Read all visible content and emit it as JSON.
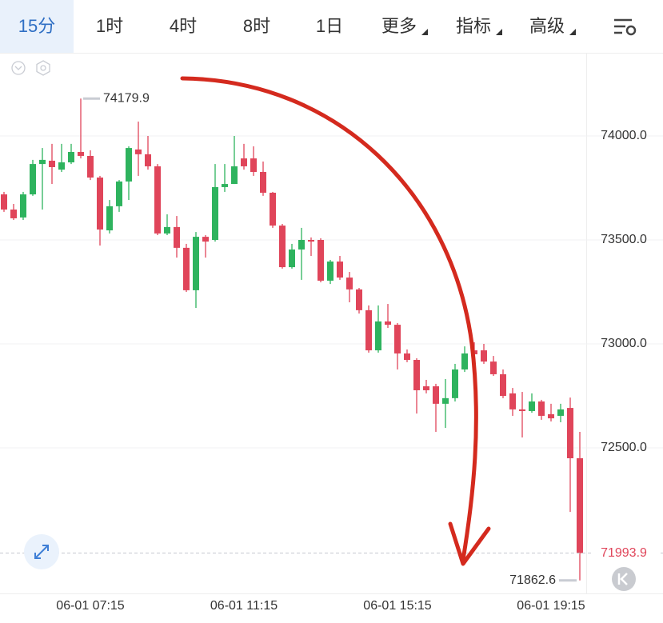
{
  "tabs": [
    "15分",
    "1时",
    "4时",
    "8时",
    "1日",
    "更多",
    "指标",
    "高级"
  ],
  "chart_data": {
    "type": "candlestick",
    "categories": [
      null,
      null,
      null,
      null,
      null,
      null,
      null,
      null,
      null,
      "06-01 07:15",
      null,
      null,
      null,
      null,
      null,
      null,
      null,
      null,
      null,
      null,
      null,
      null,
      null,
      null,
      null,
      "06-01 11:15",
      null,
      null,
      null,
      null,
      null,
      null,
      null,
      null,
      null,
      null,
      null,
      null,
      null,
      null,
      null,
      "06-01 15:15",
      null,
      null,
      null,
      null,
      null,
      null,
      null,
      null,
      null,
      null,
      null,
      null,
      null,
      null,
      null,
      "06-01 19:15",
      null,
      null,
      null
    ],
    "open": [
      73719,
      73646,
      73608,
      73719,
      73865,
      73881,
      73838,
      73873,
      73923,
      73904,
      73800,
      73546,
      73662,
      73781,
      73935,
      73912,
      73854,
      73531,
      73562,
      73462,
      73258,
      73515,
      73500,
      73754,
      73769,
      73892,
      73892,
      73827,
      73727,
      73569,
      73369,
      73454,
      73500,
      73500,
      73304,
      73396,
      73319,
      73262,
      73162,
      72969,
      73108,
      73092,
      72954,
      72923,
      72796,
      72796,
      72712,
      72739,
      72877,
      72969,
      72969,
      72915,
      72854,
      72762,
      72685,
      72677,
      72723,
      72662,
      72654,
      72692,
      72450
    ],
    "high": [
      73731,
      73673,
      73731,
      73885,
      73942,
      73962,
      73962,
      73962,
      74179.9,
      73931,
      73808,
      73692,
      73788,
      73950,
      74069,
      74000,
      73865,
      73623,
      73615,
      73481,
      73538,
      73523,
      73865,
      73865,
      74000,
      73962,
      73950,
      73877,
      73731,
      73577,
      73481,
      73558,
      73512,
      73508,
      73404,
      73423,
      73346,
      73269,
      73185,
      73185,
      73192,
      73100,
      72973,
      72931,
      72827,
      72808,
      72831,
      72904,
      72988,
      73008,
      73000,
      72942,
      72877,
      72788,
      72769,
      72762,
      72731,
      72712,
      72712,
      72742,
      72577
    ],
    "low": [
      73635,
      73596,
      73596,
      73712,
      73646,
      73769,
      73827,
      73865,
      73892,
      73788,
      73473,
      73531,
      73635,
      73692,
      73808,
      73838,
      73523,
      73523,
      73415,
      73250,
      73173,
      73415,
      73492,
      73731,
      73769,
      73838,
      73808,
      73712,
      73558,
      73362,
      73362,
      73308,
      73423,
      73296,
      73288,
      73308,
      73200,
      73146,
      72958,
      72958,
      73077,
      72877,
      72912,
      72665,
      72762,
      72577,
      72596,
      72723,
      72865,
      72904,
      72904,
      72846,
      72739,
      72654,
      72550,
      72669,
      72635,
      72627,
      72623,
      72192,
      71862.6
    ],
    "close": [
      73646,
      73604,
      73719,
      73865,
      73885,
      73850,
      73873,
      73923,
      73904,
      73800,
      73550,
      73662,
      73781,
      73942,
      73912,
      73854,
      73531,
      73562,
      73462,
      73258,
      73515,
      73492,
      73754,
      73769,
      73854,
      73854,
      73827,
      73727,
      73569,
      73369,
      73454,
      73500,
      73492,
      73304,
      73396,
      73319,
      73262,
      73162,
      72969,
      73108,
      73092,
      72954,
      72923,
      72777,
      72777,
      72712,
      72739,
      72877,
      72954,
      72950,
      72915,
      72854,
      72750,
      72685,
      72677,
      72723,
      72654,
      72642,
      72685,
      72450,
      71993.9
    ],
    "up_color": "#2eb35e",
    "down_color": "#e0455a",
    "ylim": [
      71800,
      74400
    ],
    "yticks": [
      {
        "value": 72500,
        "label": "72500.0"
      },
      {
        "value": 73000,
        "label": "73000.0"
      },
      {
        "value": 73500,
        "label": "73500.0"
      },
      {
        "value": 74000,
        "label": "74000.0"
      }
    ],
    "grid": true
  }
}
